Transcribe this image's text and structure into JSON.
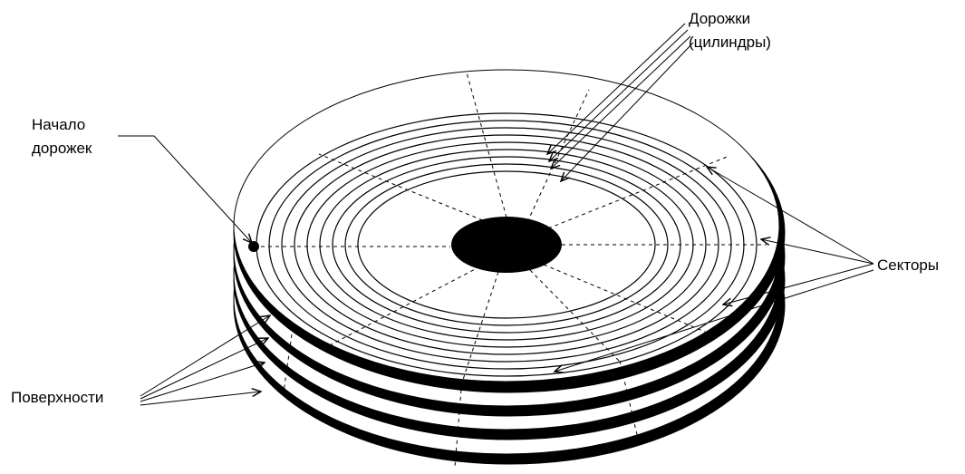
{
  "labels": {
    "tracks_line1": "Дорожки",
    "tracks_line2": "(цилиндры)",
    "track_start_line1": "Начало",
    "track_start_line2": "дорожек",
    "sectors": "Секторы",
    "surfaces": "Поверхности"
  },
  "colors": {
    "ink": "#000000",
    "paper": "#ffffff"
  }
}
